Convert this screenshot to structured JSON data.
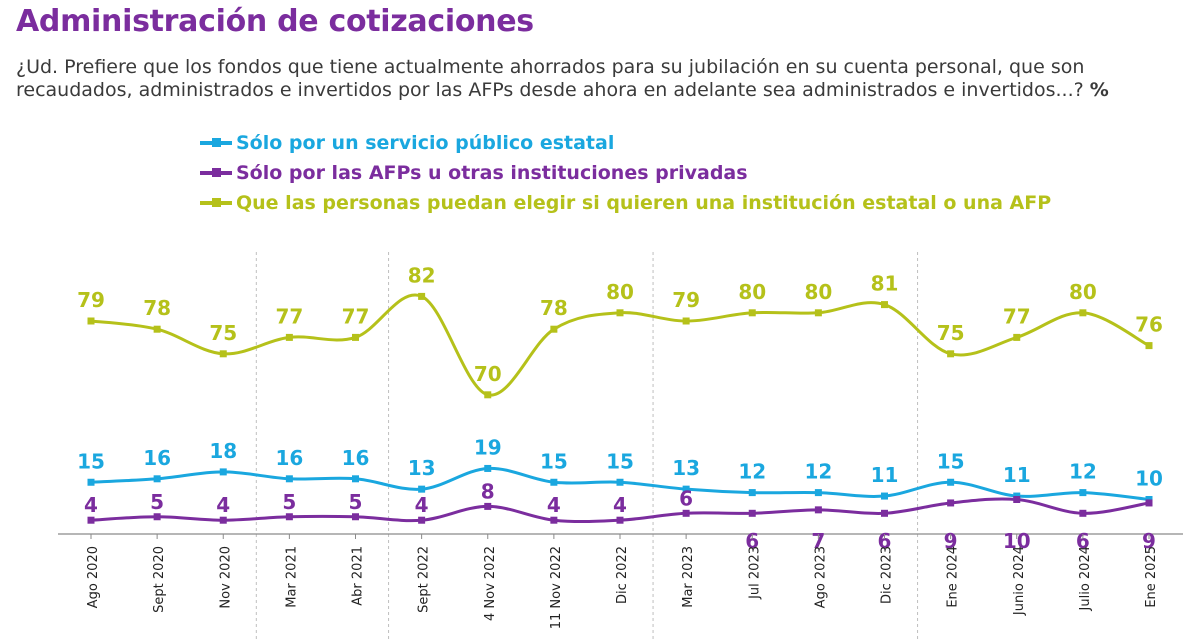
{
  "header": {
    "title": "Administración de cotizaciones",
    "question": "¿Ud. Prefiere que los fondos que tiene actualmente ahorrados para su jubilación en su cuenta personal, que son recaudados, administrados e invertidos por las AFPs desde ahora en adelante sea administrados e invertidos...?",
    "unit": "%"
  },
  "chart_data": {
    "type": "line",
    "title": "",
    "xlabel": "",
    "ylabel": "",
    "ylim": [
      0,
      100
    ],
    "grid": false,
    "legend_position": "top",
    "categories": [
      "Ago 2020",
      "Sept 2020",
      "Nov 2020",
      "Mar 2021",
      "Abr 2021",
      "Sept 2022",
      "4 Nov 2022",
      "11 Nov 2022",
      "Dic 2022",
      "Mar 2023",
      "Jul 2023",
      "Ago 2023",
      "Dic 2023",
      "Ene 2024",
      "Junio 2024",
      "Julio 2024",
      "Ene 2025"
    ],
    "series": [
      {
        "name": "Sólo por un servicio público estatal",
        "color": "#1AA7DF",
        "values": [
          15,
          16,
          18,
          16,
          16,
          13,
          19,
          15,
          15,
          13,
          12,
          12,
          11,
          15,
          11,
          12,
          10
        ]
      },
      {
        "name": "Sólo por las AFPs u otras instituciones privadas",
        "color": "#7B2D9E",
        "values": [
          4,
          5,
          4,
          5,
          5,
          4,
          8,
          4,
          4,
          6,
          6,
          7,
          6,
          9,
          10,
          6,
          9
        ]
      },
      {
        "name": "Que las personas puedan elegir si quieren una institución estatal o una AFP",
        "color": "#B5C11A",
        "values": [
          79,
          78,
          75,
          77,
          77,
          82,
          70,
          78,
          80,
          79,
          80,
          80,
          81,
          75,
          77,
          80,
          76
        ]
      }
    ],
    "group_dividers_after": [
      "Nov 2020",
      "Abr 2021",
      "Dic 2022",
      "Dic 2023"
    ]
  }
}
